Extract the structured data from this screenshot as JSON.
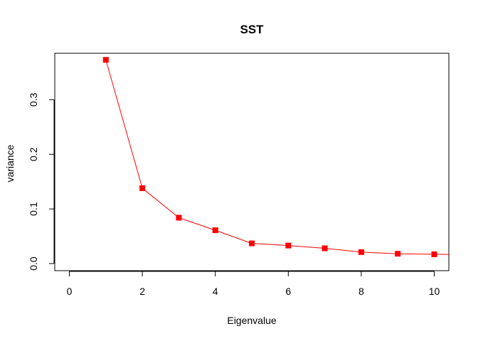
{
  "chart_data": {
    "type": "line",
    "title": "SST",
    "xlabel": "Eigenvalue",
    "ylabel": "variance",
    "xlim": [
      -0.4,
      10.4
    ],
    "ylim": [
      -0.013,
      0.385
    ],
    "x_ticks": [
      0,
      2,
      4,
      6,
      8,
      10
    ],
    "y_ticks": [
      0.0,
      0.1,
      0.2,
      0.3
    ],
    "y_tick_labels": [
      "0.0",
      "0.1",
      "0.2",
      "0.3"
    ],
    "grid": false,
    "legend": "none",
    "series": [
      {
        "x": [
          1,
          2,
          3,
          4,
          5,
          6,
          7,
          8,
          9,
          10,
          11
        ],
        "values": [
          0.373,
          0.138,
          0.084,
          0.061,
          0.037,
          0.033,
          0.028,
          0.021,
          0.018,
          0.017,
          0.016
        ],
        "color": "#ff0000",
        "marker": "square"
      }
    ]
  }
}
